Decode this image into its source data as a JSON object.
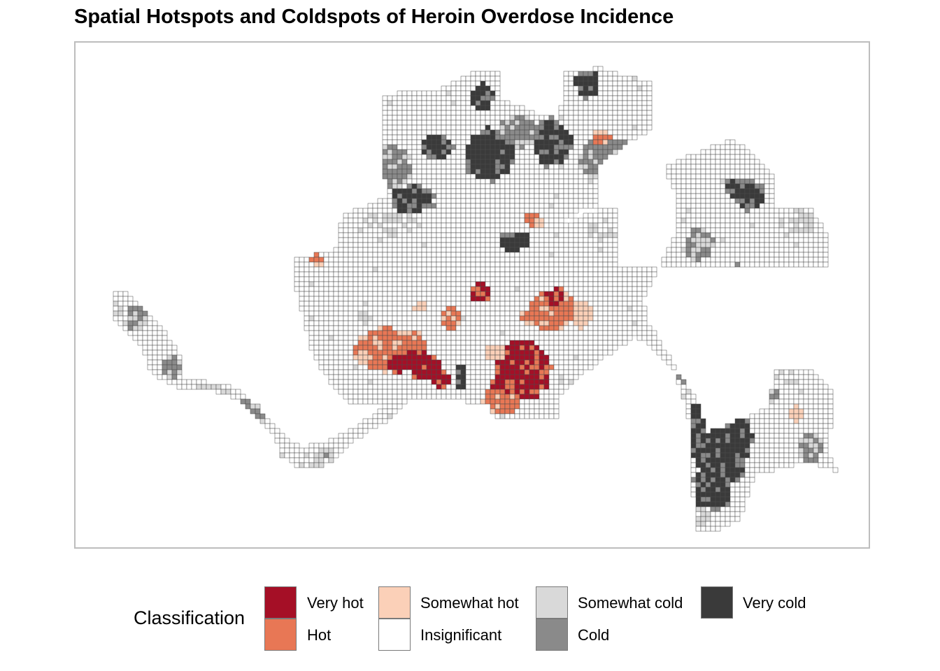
{
  "title": "Spatial Hotspots and Coldspots of Heroin Overdose Incidence",
  "legend": {
    "title": "Classification",
    "items": [
      {
        "label": "Very hot",
        "color": "#a50f26"
      },
      {
        "label": "Hot",
        "color": "#e87755"
      },
      {
        "label": "Somewhat hot",
        "color": "#fbd0b8"
      },
      {
        "label": "Insignificant",
        "color": "#ffffff"
      },
      {
        "label": "Somewhat cold",
        "color": "#d9d9d9"
      },
      {
        "label": "Cold",
        "color": "#8a8a8a"
      },
      {
        "label": "Very cold",
        "color": "#3a3a3a"
      }
    ]
  }
}
